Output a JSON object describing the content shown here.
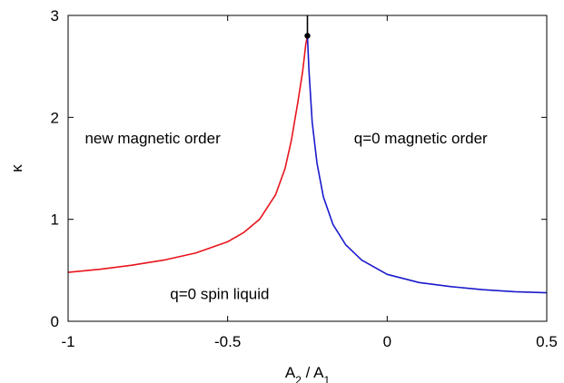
{
  "chart_data": {
    "type": "line",
    "xlabel_base": "A",
    "xlabel_sub1": "2",
    "xlabel_sep": " / A",
    "xlabel_sub2": "1",
    "ylabel": "κ",
    "xlim": [
      -1,
      0.5
    ],
    "ylim": [
      0,
      3
    ],
    "xticks": [
      -1,
      -0.5,
      0,
      0.5
    ],
    "yticks": [
      0,
      1,
      2,
      3
    ],
    "xtick_labels": [
      "-1",
      "-0.5",
      "0",
      "0.5"
    ],
    "ytick_labels": [
      "0",
      "1",
      "2",
      "3"
    ],
    "grid": false,
    "series": [
      {
        "color": "#e8141b",
        "x": [
          -1.0,
          -0.9,
          -0.8,
          -0.7,
          -0.6,
          -0.5,
          -0.45,
          -0.4,
          -0.35,
          -0.32,
          -0.3,
          -0.28,
          -0.265,
          -0.255,
          -0.25
        ],
        "y": [
          0.48,
          0.51,
          0.55,
          0.6,
          0.67,
          0.78,
          0.87,
          1.0,
          1.24,
          1.5,
          1.78,
          2.15,
          2.45,
          2.72,
          2.8
        ]
      },
      {
        "color": "#1a1acc",
        "x": [
          -0.25,
          -0.245,
          -0.235,
          -0.22,
          -0.2,
          -0.17,
          -0.13,
          -0.08,
          0.0,
          0.1,
          0.2,
          0.3,
          0.4,
          0.5
        ],
        "y": [
          2.8,
          2.45,
          1.95,
          1.55,
          1.22,
          0.95,
          0.75,
          0.6,
          0.46,
          0.38,
          0.34,
          0.31,
          0.29,
          0.28
        ]
      },
      {
        "color": "#000000",
        "x": [
          -0.25,
          -0.25
        ],
        "y": [
          2.8,
          3.0
        ]
      }
    ],
    "points": [
      {
        "x": -0.25,
        "y": 2.8,
        "color": "#000000"
      }
    ],
    "annotations": [
      {
        "text": "new magnetic order",
        "x": -0.735,
        "y": 1.8
      },
      {
        "text": "q=0 magnetic order",
        "x": 0.105,
        "y": 1.8
      },
      {
        "text": "q=0 spin liquid",
        "x": -0.525,
        "y": 0.27
      }
    ]
  }
}
